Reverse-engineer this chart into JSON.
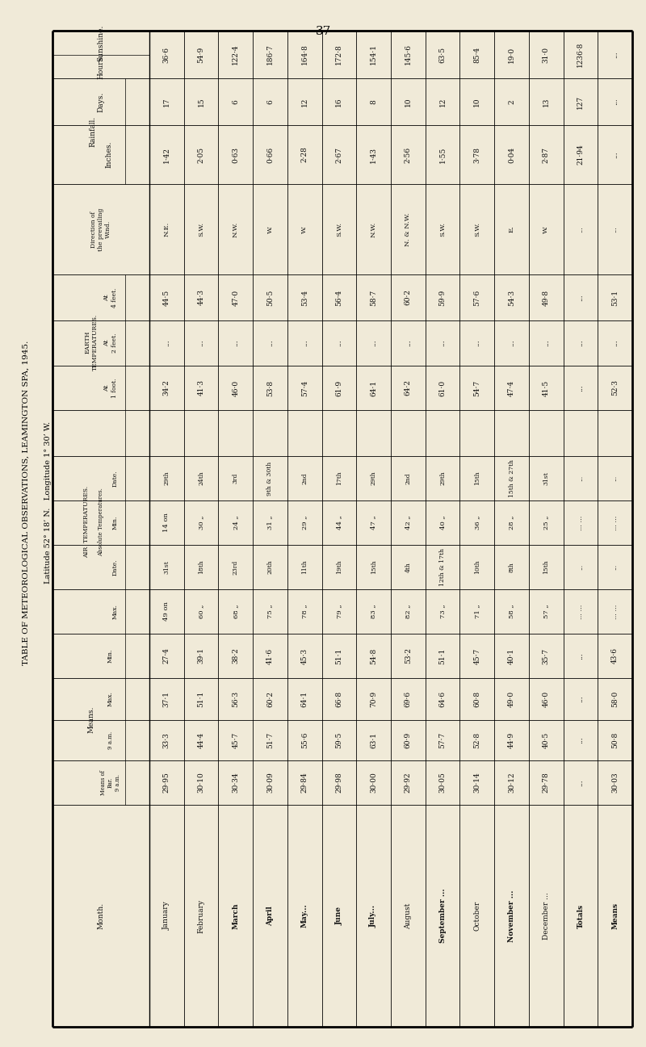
{
  "page_number": "37",
  "title_line1": "TABLE OF METEOROLOGICAL OBSERVATIONS, LEAMINGTON SPA, 1945.",
  "title_line2": "Latitude 52° 18’ N.   Longitude 1° 30’ W.",
  "bg_color": "#f0ead8",
  "months": [
    "January",
    "February",
    "March",
    "April",
    "May...",
    "June",
    "July...",
    "August",
    "September ...",
    "October",
    "November ...",
    "December ...",
    "Totals",
    "Means"
  ],
  "means_bar_9am": [
    "29·95",
    "30·10",
    "30·34",
    "30·09",
    "29·84",
    "29·98",
    "30·00",
    "29·92",
    "30·05",
    "30·14",
    "30·12",
    "29·78",
    "...",
    "30·03"
  ],
  "means_9am": [
    "33·3",
    "44·4",
    "45·7",
    "51·7",
    "55·6",
    "59·5",
    "63·1",
    "60·9",
    "57·7",
    "52·8",
    "44·9",
    "40·5",
    "...",
    "50·8"
  ],
  "means_max": [
    "37·1",
    "51·1",
    "56·3",
    "60·2",
    "64·1",
    "66·8",
    "70·9",
    "69·6",
    "64·6",
    "60·8",
    "49·0",
    "46·0",
    "...",
    "58·0"
  ],
  "means_min": [
    "27·4",
    "39·1",
    "38·2",
    "41·6",
    "45·3",
    "51·1",
    "54·8",
    "53·2",
    "51·1",
    "45·7",
    "40·1",
    "35·7",
    "...",
    "43·6"
  ],
  "air_max_val": [
    "49",
    "60",
    "68",
    "75",
    "78",
    "79",
    "83",
    "82",
    "73",
    "71",
    "58",
    "57",
    "...",
    "..."
  ],
  "air_max_on": [
    "on",
    "„",
    "„",
    "„",
    "„",
    "„",
    "„",
    "„",
    "„",
    "„",
    "„",
    "„",
    "...",
    "..."
  ],
  "air_max_date": [
    "31st",
    "18th",
    "23rd",
    "20th",
    "11th",
    "19th",
    "15th",
    "4th",
    "12th & 17th",
    "10th",
    "8th",
    "15th",
    "...",
    "..."
  ],
  "air_min_val": [
    "14",
    "30",
    "24",
    "31",
    "29",
    "44",
    "47",
    "42",
    "40",
    "36",
    "28",
    "25",
    "...",
    "..."
  ],
  "air_min_on": [
    "on",
    "„",
    "„",
    "„",
    "„",
    "„",
    "„",
    "„",
    "„",
    "„",
    "„",
    "„",
    "...",
    "..."
  ],
  "air_min_date": [
    "29th",
    "24th",
    "3rd",
    "9th & 30th",
    "2nd",
    "17th",
    "29th",
    "2nd",
    "29th",
    "15th",
    "15th & 27th",
    "31st",
    "...",
    "..."
  ],
  "earth_1ft": [
    "34·2",
    "41·3",
    "46·0",
    "53·8",
    "57·4",
    "61·9",
    "64·1",
    "64·2",
    "61·0",
    "54·7",
    "47·4",
    "41·5",
    "...",
    "52·3"
  ],
  "earth_2ft": [
    "...",
    "...",
    "...",
    "...",
    "...",
    "...",
    "...",
    "...",
    "...",
    "...",
    "...",
    "...",
    "...",
    "..."
  ],
  "earth_4ft": [
    "44·5",
    "44·3",
    "47·0",
    "50·5",
    "53·4",
    "56·4",
    "58·7",
    "60·2",
    "59·9",
    "57·6",
    "54·3",
    "49·8",
    "...",
    "53·1"
  ],
  "wind_direction": [
    "N.E.",
    "S.W.",
    "N.W.",
    "W.",
    "W.",
    "S.W.",
    "N.W.",
    "N. & N.W.",
    "S.W.",
    "S.W.",
    "E.",
    "W.",
    "...",
    "..."
  ],
  "rainfall_inches": [
    "1·42",
    "2·05",
    "0·63",
    "0·66",
    "2·28",
    "2·67",
    "1·43",
    "2·56",
    "1·55",
    "3·78",
    "0·04",
    "2·87",
    "21·94",
    "..."
  ],
  "rainfall_days": [
    "17",
    "15",
    "6",
    "6",
    "12",
    "16",
    "8",
    "10",
    "12",
    "10",
    "2",
    "13",
    "127",
    "..."
  ],
  "sunshine_hours": [
    "36·6",
    "54·9",
    "122·4",
    "186·7",
    "164·8",
    "172·8",
    "154·1",
    "145·6",
    "63·5",
    "85·4",
    "19·0",
    "31·0",
    "1236·8",
    "..."
  ],
  "bold_months": [
    "March",
    "April",
    "May...",
    "June",
    "July...",
    "September ...",
    "November ..."
  ]
}
